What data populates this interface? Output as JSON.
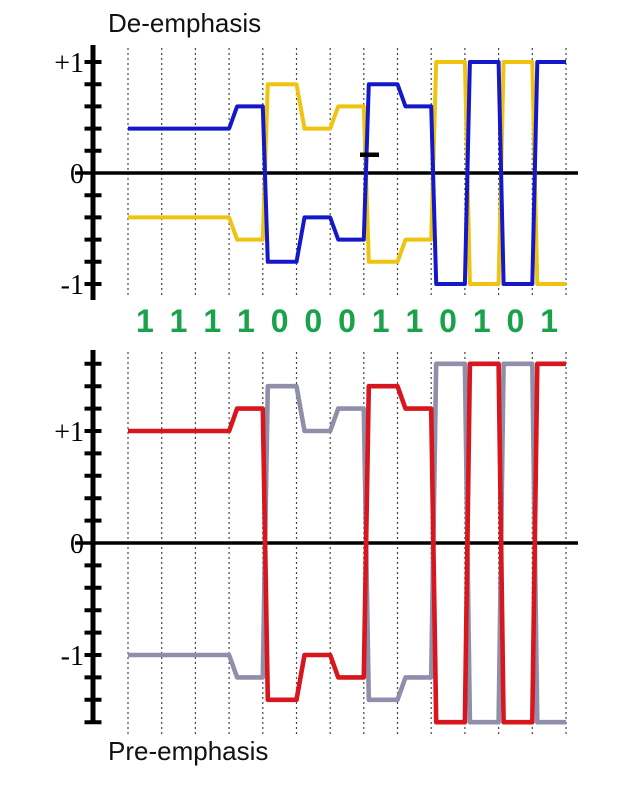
{
  "titles": {
    "top": "De-emphasis",
    "bottom": "Pre-emphasis"
  },
  "bits": [
    "1",
    "1",
    "1",
    "1",
    "0",
    "0",
    "0",
    "1",
    "1",
    "0",
    "1",
    "0",
    "1"
  ],
  "colors": {
    "blue": "#1518C8",
    "yellow": "#EFC411",
    "red": "#D8161D",
    "gray": "#8F8FAC",
    "green": "#19A24A",
    "axis": "#000000",
    "grid": "#454545"
  },
  "chart_data": [
    {
      "type": "line",
      "title": "De-emphasis",
      "description": "Differential pair waveform with de-emphasis; steady bits attenuated to ±0.4, first bit after transition ±0.8, last bit of run ±0.6, single bits ±1.0",
      "categories": [
        "1",
        "1",
        "1",
        "1",
        "0",
        "0",
        "0",
        "1",
        "1",
        "0",
        "1",
        "0",
        "1"
      ],
      "x_axis": "bit periods (13 bits, dotted gridlines at each bit boundary)",
      "ylabel_ticks_every": 0.2,
      "ylim": [
        -1,
        1
      ],
      "y_tick_labels": [
        {
          "label": "+1",
          "value": 1
        },
        {
          "label": "0",
          "value": 0
        },
        {
          "label": "-1",
          "value": -1
        }
      ],
      "grid": "vertical-dotted",
      "series": [
        {
          "name": "positive-leg",
          "color_key": "blue",
          "values": [
            0.4,
            0.4,
            0.4,
            0.6,
            -0.8,
            -0.4,
            -0.6,
            0.8,
            0.6,
            -1,
            1,
            -1,
            1
          ]
        },
        {
          "name": "negative-leg",
          "color_key": "yellow",
          "values": [
            -0.4,
            -0.4,
            -0.4,
            -0.6,
            0.8,
            0.4,
            0.6,
            -0.8,
            -0.6,
            1,
            -1,
            1,
            -1
          ]
        }
      ]
    },
    {
      "type": "line",
      "title": "Pre-emphasis",
      "description": "Differential pair waveform with pre-emphasis; steady bits ±1.0, first bit after transition ±1.4, last bit of run ±1.2, single bits ±1.6",
      "categories": [
        "1",
        "1",
        "1",
        "1",
        "0",
        "0",
        "0",
        "1",
        "1",
        "0",
        "1",
        "0",
        "1"
      ],
      "x_axis": "bit periods (13 bits, dotted gridlines at each bit boundary)",
      "ylabel_ticks_every": 0.2,
      "ylim": [
        -1.6,
        1.6
      ],
      "y_tick_labels": [
        {
          "label": "+1",
          "value": 1
        },
        {
          "label": "0",
          "value": 0
        },
        {
          "label": "-1",
          "value": -1
        }
      ],
      "grid": "vertical-dotted",
      "series": [
        {
          "name": "positive-leg",
          "color_key": "red",
          "values": [
            1,
            1,
            1,
            1.2,
            -1.4,
            -1,
            -1.2,
            1.4,
            1.2,
            -1.6,
            1.6,
            -1.6,
            1.6
          ]
        },
        {
          "name": "negative-leg",
          "color_key": "gray",
          "values": [
            -1,
            -1,
            -1,
            -1.2,
            1.4,
            1,
            1.2,
            -1.4,
            -1.2,
            1.6,
            -1.6,
            1.6,
            -1.6
          ]
        }
      ]
    }
  ]
}
